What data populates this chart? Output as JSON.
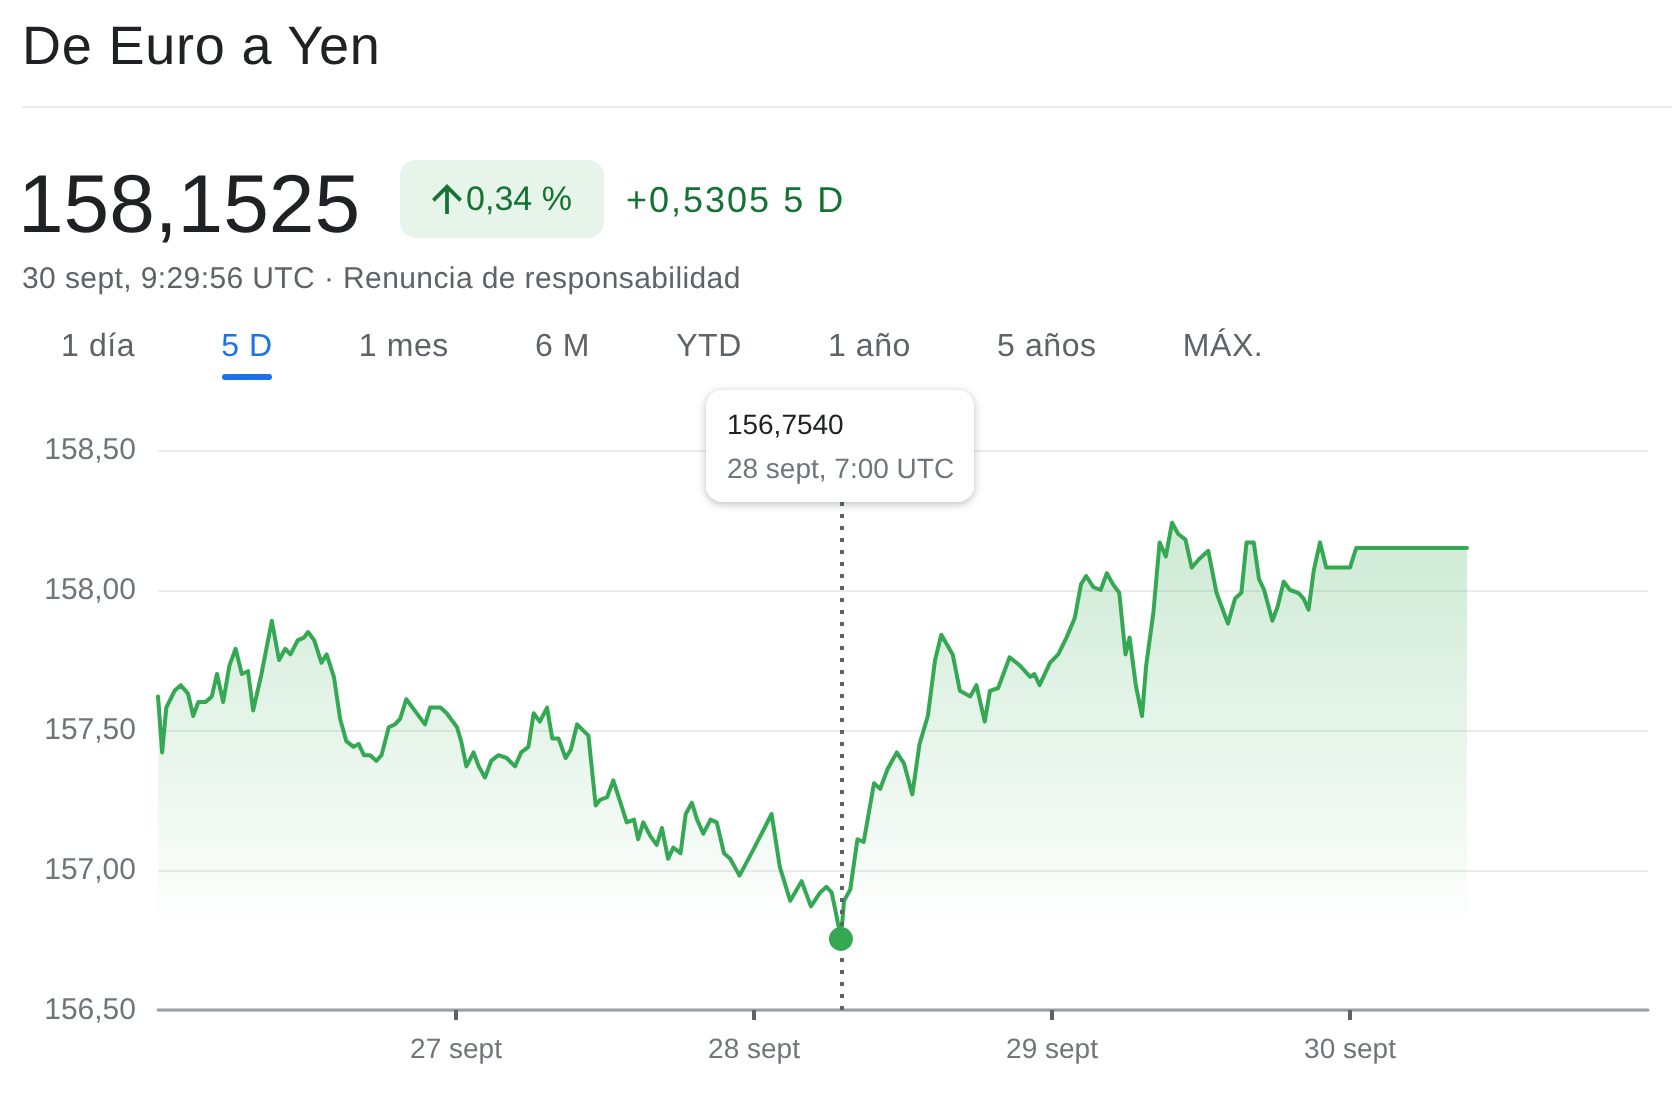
{
  "chart_data": {
    "type": "area",
    "title": "De Euro a Yen",
    "annotations": [
      "158,1525",
      "0,34 %",
      "+0,5305 5 D",
      "30 sept, 9:29:56 UTC · Renuncia de responsabilidad",
      "1 día",
      "5 D",
      "1 mes",
      "6 M",
      "YTD",
      "1 año",
      "5 años",
      "MÁX."
    ],
    "x": [
      "--09-26T00:00",
      "--09-26T00:20",
      "--09-26T00:40",
      "--09-26T01:20",
      "--09-26T01:50",
      "--09-26T02:25",
      "--09-26T02:50",
      "--09-26T03:15",
      "--09-26T03:50",
      "--09-26T04:20",
      "--09-26T04:45",
      "--09-26T05:15",
      "--09-26T05:45",
      "--09-26T06:15",
      "--09-26T06:45",
      "--09-26T07:15",
      "--09-26T07:40",
      "--09-26T08:20",
      "--09-26T09:10",
      "--09-26T09:45",
      "--09-26T10:15",
      "--09-26T10:40",
      "--09-26T11:15",
      "--09-26T11:45",
      "--09-26T12:05",
      "--09-26T12:35",
      "--09-26T13:10",
      "--09-26T13:35",
      "--09-26T14:10",
      "--09-26T14:40",
      "--09-26T15:10",
      "--09-26T15:45",
      "--09-26T16:10",
      "--09-26T16:35",
      "--09-26T17:05",
      "--09-26T17:35",
      "--09-26T18:00",
      "--09-26T18:35",
      "--09-26T19:05",
      "--09-26T19:30",
      "--09-26T20:00",
      "--09-26T20:40",
      "--09-26T21:30",
      "--09-26T21:55",
      "--09-26T22:45",
      "--09-26T23:15",
      "--09-27T00:05",
      "--09-27T00:25",
      "--09-27T00:50",
      "--09-27T01:25",
      "--09-27T01:50",
      "--09-27T02:20",
      "--09-27T02:50",
      "--09-27T03:25",
      "--09-27T04:05",
      "--09-27T04:45",
      "--09-27T05:15",
      "--09-27T05:50",
      "--09-27T06:15",
      "--09-27T06:45",
      "--09-27T07:20",
      "--09-27T07:45",
      "--09-27T08:15",
      "--09-27T08:50",
      "--09-27T09:15",
      "--09-27T09:45",
      "--09-27T10:40",
      "--09-27T11:15",
      "--09-27T11:35",
      "--09-27T12:10",
      "--09-27T12:40",
      "--09-27T13:15",
      "--09-27T13:45",
      "--09-27T14:20",
      "--09-27T14:40",
      "--09-27T15:05",
      "--09-27T15:40",
      "--09-27T16:10",
      "--09-27T16:35",
      "--09-27T17:05",
      "--09-27T17:30",
      "--09-27T18:05",
      "--09-27T18:30",
      "--09-27T19:00",
      "--09-27T19:25",
      "--09-27T19:55",
      "--09-27T20:30",
      "--09-27T21:00",
      "--09-27T21:35",
      "--09-27T22:05",
      "--09-27T22:50",
      "--09-27T23:55",
      "--09-28T01:25",
      "--09-28T02:05",
      "--09-28T02:55",
      "--09-28T03:50",
      "--09-28T04:35",
      "--09-28T05:20",
      "--09-28T05:50",
      "--09-28T06:15",
      "--09-28T06:35",
      "--09-28T07:00",
      "--09-28T07:15",
      "--09-28T07:45",
      "--09-28T08:20",
      "--09-28T08:50",
      "--09-28T09:40",
      "--09-28T10:10",
      "--09-28T10:45",
      "--09-28T11:30",
      "--09-28T12:05",
      "--09-28T12:45",
      "--09-28T13:20",
      "--09-28T14:00",
      "--09-28T14:35",
      "--09-28T15:05",
      "--09-28T16:00",
      "--09-28T16:35",
      "--09-28T17:25",
      "--09-28T17:55",
      "--09-28T18:35",
      "--09-28T19:00",
      "--09-28T19:40",
      "--09-28T20:35",
      "--09-28T21:25",
      "--09-28T22:15",
      "--09-28T22:35",
      "--09-28T23:00",
      "--09-28T23:50",
      "--09-29T00:30",
      "--09-29T01:10",
      "--09-29T01:50",
      "--09-29T02:20",
      "--09-29T02:45",
      "--09-29T03:20",
      "--09-29T03:55",
      "--09-29T04:25",
      "--09-29T04:55",
      "--09-29T05:25",
      "--09-29T05:55",
      "--09-29T06:15",
      "--09-29T06:45",
      "--09-29T07:15",
      "--09-29T07:35",
      "--09-29T08:10",
      "--09-29T08:40",
      "--09-29T09:10",
      "--09-29T09:40",
      "--09-29T10:10",
      "--09-29T10:45",
      "--09-29T11:15",
      "--09-29T11:50",
      "--09-29T12:35",
      "--09-29T13:15",
      "--09-29T13:40",
      "--09-29T14:10",
      "--09-29T14:45",
      "--09-29T15:15",
      "--09-29T15:40",
      "--09-29T16:15",
      "--09-29T16:40",
      "--09-29T17:05",
      "--09-29T17:45",
      "--09-29T18:10",
      "--09-29T18:40",
      "--09-29T19:10",
      "--09-29T19:50",
      "--09-29T20:15",
      "--09-29T20:40",
      "--09-29T21:05",
      "--09-29T21:35",
      "--09-29T22:05",
      "--09-29T22:55",
      "--09-30T00:00",
      "--09-30T00:30",
      "--09-30T09:25"
    ],
    "values": [
      157.62,
      157.42,
      157.58,
      157.64,
      157.66,
      157.63,
      157.55,
      157.6,
      157.6,
      157.62,
      157.7,
      157.6,
      157.73,
      157.79,
      157.7,
      157.71,
      157.57,
      157.7,
      157.89,
      157.75,
      157.79,
      157.77,
      157.82,
      157.83,
      157.85,
      157.82,
      157.74,
      157.77,
      157.69,
      157.54,
      157.46,
      157.44,
      157.45,
      157.41,
      157.41,
      157.39,
      157.41,
      157.51,
      157.52,
      157.54,
      157.61,
      157.57,
      157.52,
      157.58,
      157.58,
      157.56,
      157.51,
      157.46,
      157.37,
      157.42,
      157.37,
      157.33,
      157.39,
      157.41,
      157.4,
      157.37,
      157.42,
      157.44,
      157.56,
      157.53,
      157.58,
      157.47,
      157.47,
      157.4,
      157.43,
      157.52,
      157.48,
      157.23,
      157.25,
      157.26,
      157.32,
      157.24,
      157.17,
      157.18,
      157.11,
      157.17,
      157.12,
      157.09,
      157.15,
      157.04,
      157.08,
      157.06,
      157.2,
      157.24,
      157.18,
      157.13,
      157.18,
      157.17,
      157.06,
      157.04,
      156.98,
      157.07,
      157.2,
      157.01,
      156.89,
      156.96,
      156.87,
      156.92,
      156.94,
      156.92,
      156.85,
      156.754,
      156.89,
      156.93,
      157.11,
      157.1,
      157.31,
      157.29,
      157.36,
      157.42,
      157.38,
      157.27,
      157.45,
      157.55,
      157.75,
      157.84,
      157.77,
      157.64,
      157.62,
      157.66,
      157.53,
      157.64,
      157.65,
      157.76,
      157.73,
      157.69,
      157.7,
      157.66,
      157.74,
      157.77,
      157.83,
      157.9,
      158.02,
      158.05,
      158.01,
      158.0,
      158.06,
      158.02,
      157.99,
      157.77,
      157.83,
      157.66,
      157.55,
      157.73,
      157.92,
      158.17,
      158.12,
      158.24,
      158.2,
      158.18,
      158.08,
      158.11,
      158.14,
      157.99,
      157.94,
      157.88,
      157.97,
      157.99,
      158.17,
      158.17,
      158.04,
      158.0,
      157.89,
      157.94,
      158.03,
      158.0,
      157.99,
      157.97,
      157.93,
      158.07,
      158.17,
      158.08,
      158.08,
      158.08,
      158.15,
      158.15
    ],
    "color": "#34a853",
    "xlim": [
      "--09-26T00:00",
      "--10-01T00:00"
    ],
    "xticks": [
      {
        "value": "--09-27",
        "label": "27 sept"
      },
      {
        "value": "--09-28",
        "label": "28 sept"
      },
      {
        "value": "--09-29",
        "label": "29 sept"
      },
      {
        "value": "--09-30",
        "label": "30 sept"
      }
    ],
    "ylim": [
      156.5,
      158.5
    ],
    "yticks": [
      {
        "value": 156.5,
        "label": "156,50"
      },
      {
        "value": 157,
        "label": "157,00"
      },
      {
        "value": 157.5,
        "label": "157,50"
      },
      {
        "value": 158,
        "label": "158,00"
      },
      {
        "value": 158.5,
        "label": "158,50"
      }
    ],
    "grid": "y",
    "ref_lines": [
      {
        "axis": "x",
        "value": "--09-28T07:00",
        "label": "156,7540\n28 sept, 7:00 UTC",
        "line_style": "dotted",
        "color": "#5f6368"
      }
    ]
  }
}
